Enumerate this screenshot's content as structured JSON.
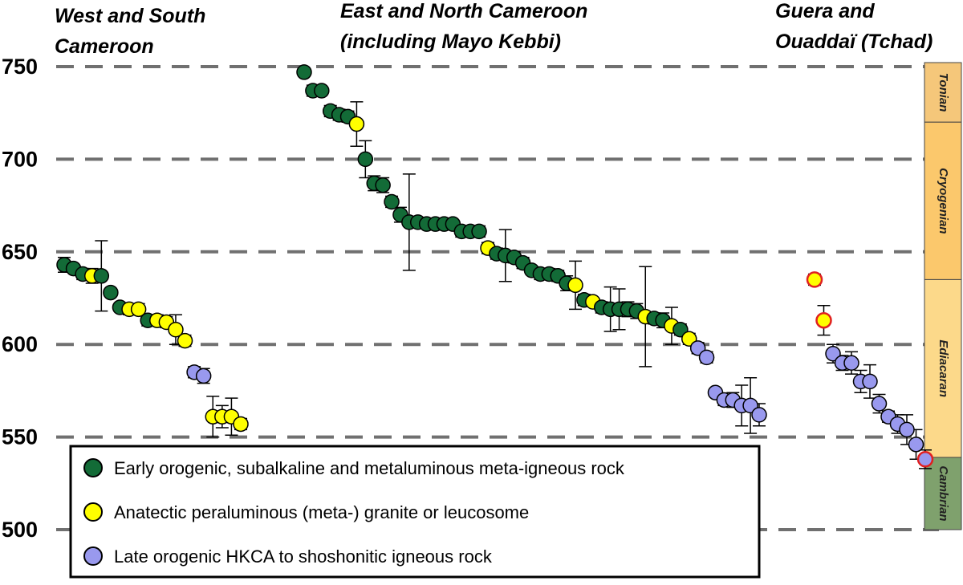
{
  "chart_data": {
    "type": "scatter",
    "title": "",
    "xlabel": "",
    "ylabel": "",
    "ylim": [
      500,
      755
    ],
    "yticks": [
      500,
      550,
      600,
      650,
      700,
      750
    ],
    "grid": "horizontal dashed",
    "legend_position": "bottom-left",
    "groups": [
      {
        "name": "West and South Cameroon",
        "label_line1": "West and South",
        "label_line2": "Cameroon"
      },
      {
        "name": "East and North Cameroon (including Mayo Kebbi)",
        "label_line1": "East and North Cameroon",
        "label_line2": "(including Mayo Kebbi)"
      },
      {
        "name": "Guera and Ouaddaï (Tchad)",
        "label_line1": "Guera and",
        "label_line2": "Ouaddaï (Tchad)"
      }
    ],
    "legend": [
      {
        "key": "early",
        "label": "Early orogenic, subalkaline and metaluminous meta-igneous rock",
        "color": "#136b37"
      },
      {
        "key": "anatectic",
        "label": "Anatectic peraluminous (meta-) granite or leucosome",
        "color": "#ffff00"
      },
      {
        "key": "late",
        "label": "Late orogenic HKCA to shoshonitic igneous rock",
        "color": "#9999ee"
      }
    ],
    "periods": [
      {
        "name": "Tonian",
        "from": 720,
        "to": 755,
        "color": "#f5c77a"
      },
      {
        "name": "Cryogenian",
        "from": 635,
        "to": 720,
        "color": "#fbc86c"
      },
      {
        "name": "Ediacaran",
        "from": 539,
        "to": 635,
        "color": "#fcd98a"
      },
      {
        "name": "Cambrian",
        "from": 500,
        "to": 539,
        "color": "#7fa16d"
      }
    ],
    "series": [
      {
        "group": "West and South Cameroon",
        "points": [
          {
            "x": 1,
            "y": 643,
            "err": 4,
            "cls": "early"
          },
          {
            "x": 2,
            "y": 641,
            "err": 0,
            "cls": "early"
          },
          {
            "x": 3,
            "y": 638,
            "err": 3,
            "cls": "early"
          },
          {
            "x": 4,
            "y": 637,
            "err": 4,
            "cls": "anatectic"
          },
          {
            "x": 5,
            "y": 637,
            "err": 19,
            "cls": "early"
          },
          {
            "x": 6,
            "y": 628,
            "err": 0,
            "cls": "early"
          },
          {
            "x": 7,
            "y": 620,
            "err": 0,
            "cls": "early"
          },
          {
            "x": 8,
            "y": 619,
            "err": 3,
            "cls": "anatectic"
          },
          {
            "x": 9,
            "y": 619,
            "err": 3,
            "cls": "anatectic"
          },
          {
            "x": 10,
            "y": 613,
            "err": 3,
            "cls": "early"
          },
          {
            "x": 11,
            "y": 613,
            "err": 3,
            "cls": "anatectic"
          },
          {
            "x": 12,
            "y": 612,
            "err": 3,
            "cls": "anatectic"
          },
          {
            "x": 13,
            "y": 608,
            "err": 8,
            "cls": "anatectic"
          },
          {
            "x": 14,
            "y": 602,
            "err": 3,
            "cls": "anatectic"
          },
          {
            "x": 15,
            "y": 585,
            "err": 3,
            "cls": "late"
          },
          {
            "x": 16,
            "y": 583,
            "err": 4,
            "cls": "late"
          },
          {
            "x": 17,
            "y": 561,
            "err": 11,
            "cls": "anatectic"
          },
          {
            "x": 18,
            "y": 561,
            "err": 6,
            "cls": "anatectic"
          },
          {
            "x": 19,
            "y": 561,
            "err": 10,
            "cls": "anatectic"
          },
          {
            "x": 20,
            "y": 557,
            "err": 3,
            "cls": "anatectic"
          }
        ]
      },
      {
        "group": "East and North Cameroon (including Mayo Kebbi)",
        "points": [
          {
            "x": 1,
            "y": 747,
            "err": 0,
            "cls": "early"
          },
          {
            "x": 2,
            "y": 737,
            "err": 3,
            "cls": "early"
          },
          {
            "x": 3,
            "y": 737,
            "err": 0,
            "cls": "early"
          },
          {
            "x": 4,
            "y": 726,
            "err": 3,
            "cls": "early"
          },
          {
            "x": 5,
            "y": 724,
            "err": 3,
            "cls": "early"
          },
          {
            "x": 6,
            "y": 723,
            "err": 3,
            "cls": "early"
          },
          {
            "x": 7,
            "y": 719,
            "err": 12,
            "cls": "anatectic"
          },
          {
            "x": 8,
            "y": 700,
            "err": 10,
            "cls": "early"
          },
          {
            "x": 9,
            "y": 687,
            "err": 4,
            "cls": "early"
          },
          {
            "x": 10,
            "y": 686,
            "err": 4,
            "cls": "early"
          },
          {
            "x": 11,
            "y": 677,
            "err": 3,
            "cls": "early"
          },
          {
            "x": 12,
            "y": 670,
            "err": 4,
            "cls": "early"
          },
          {
            "x": 13,
            "y": 666,
            "err": 26,
            "cls": "early"
          },
          {
            "x": 14,
            "y": 666,
            "err": 0,
            "cls": "early"
          },
          {
            "x": 15,
            "y": 665,
            "err": 0,
            "cls": "early"
          },
          {
            "x": 16,
            "y": 665,
            "err": 0,
            "cls": "early"
          },
          {
            "x": 17,
            "y": 665,
            "err": 0,
            "cls": "early"
          },
          {
            "x": 18,
            "y": 665,
            "err": 0,
            "cls": "early"
          },
          {
            "x": 19,
            "y": 661,
            "err": 3,
            "cls": "early"
          },
          {
            "x": 20,
            "y": 661,
            "err": 3,
            "cls": "early"
          },
          {
            "x": 21,
            "y": 661,
            "err": 3,
            "cls": "early"
          },
          {
            "x": 22,
            "y": 652,
            "err": 3,
            "cls": "anatectic"
          },
          {
            "x": 23,
            "y": 649,
            "err": 3,
            "cls": "early"
          },
          {
            "x": 24,
            "y": 648,
            "err": 14,
            "cls": "early"
          },
          {
            "x": 25,
            "y": 647,
            "err": 3,
            "cls": "early"
          },
          {
            "x": 26,
            "y": 644,
            "err": 3,
            "cls": "early"
          },
          {
            "x": 27,
            "y": 640,
            "err": 0,
            "cls": "early"
          },
          {
            "x": 28,
            "y": 638,
            "err": 3,
            "cls": "early"
          },
          {
            "x": 29,
            "y": 638,
            "err": 3,
            "cls": "early"
          },
          {
            "x": 30,
            "y": 637,
            "err": 3,
            "cls": "early"
          },
          {
            "x": 31,
            "y": 633,
            "err": 4,
            "cls": "early"
          },
          {
            "x": 32,
            "y": 632,
            "err": 13,
            "cls": "anatectic"
          },
          {
            "x": 33,
            "y": 624,
            "err": 3,
            "cls": "early"
          },
          {
            "x": 34,
            "y": 623,
            "err": 0,
            "cls": "anatectic"
          },
          {
            "x": 35,
            "y": 620,
            "err": 3,
            "cls": "early"
          },
          {
            "x": 36,
            "y": 619,
            "err": 12,
            "cls": "early"
          },
          {
            "x": 37,
            "y": 619,
            "err": 11,
            "cls": "early"
          },
          {
            "x": 38,
            "y": 619,
            "err": 4,
            "cls": "early"
          },
          {
            "x": 39,
            "y": 618,
            "err": 4,
            "cls": "early"
          },
          {
            "x": 40,
            "y": 615,
            "err": 27,
            "cls": "anatectic"
          },
          {
            "x": 41,
            "y": 614,
            "err": 3,
            "cls": "early"
          },
          {
            "x": 42,
            "y": 613,
            "err": 4,
            "cls": "early"
          },
          {
            "x": 43,
            "y": 610,
            "err": 10,
            "cls": "anatectic"
          },
          {
            "x": 44,
            "y": 608,
            "err": 3,
            "cls": "early"
          },
          {
            "x": 45,
            "y": 603,
            "err": 3,
            "cls": "anatectic"
          },
          {
            "x": 46,
            "y": 598,
            "err": 3,
            "cls": "late"
          },
          {
            "x": 47,
            "y": 593,
            "err": 3,
            "cls": "late"
          },
          {
            "x": 48,
            "y": 574,
            "err": 0,
            "cls": "late"
          },
          {
            "x": 49,
            "y": 570,
            "err": 3,
            "cls": "late"
          },
          {
            "x": 50,
            "y": 570,
            "err": 4,
            "cls": "late"
          },
          {
            "x": 51,
            "y": 567,
            "err": 11,
            "cls": "late"
          },
          {
            "x": 52,
            "y": 567,
            "err": 15,
            "cls": "late"
          },
          {
            "x": 53,
            "y": 562,
            "err": 6,
            "cls": "late"
          }
        ]
      },
      {
        "group": "Guera and Ouaddaï (Tchad)",
        "points": [
          {
            "x": 1,
            "y": 635,
            "err": 3,
            "cls": "anatectic",
            "outlined": true
          },
          {
            "x": 2,
            "y": 613,
            "err": 8,
            "cls": "anatectic",
            "outlined": true
          },
          {
            "x": 3,
            "y": 595,
            "err": 5,
            "cls": "late"
          },
          {
            "x": 4,
            "y": 590,
            "err": 4,
            "cls": "late"
          },
          {
            "x": 5,
            "y": 590,
            "err": 6,
            "cls": "late"
          },
          {
            "x": 6,
            "y": 580,
            "err": 6,
            "cls": "late"
          },
          {
            "x": 7,
            "y": 580,
            "err": 9,
            "cls": "late"
          },
          {
            "x": 8,
            "y": 568,
            "err": 5,
            "cls": "late"
          },
          {
            "x": 9,
            "y": 561,
            "err": 3,
            "cls": "late"
          },
          {
            "x": 10,
            "y": 557,
            "err": 5,
            "cls": "late"
          },
          {
            "x": 11,
            "y": 554,
            "err": 8,
            "cls": "late"
          },
          {
            "x": 12,
            "y": 546,
            "err": 8,
            "cls": "late"
          },
          {
            "x": 13,
            "y": 538,
            "err": 5,
            "cls": "late",
            "outlined": true
          }
        ]
      }
    ]
  }
}
